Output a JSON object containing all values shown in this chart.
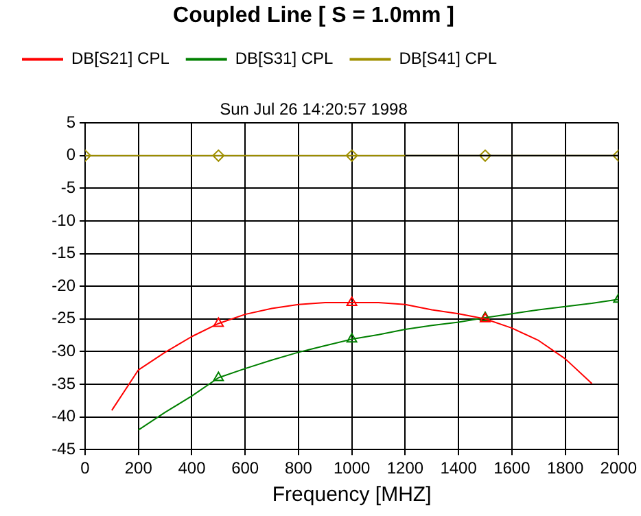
{
  "chart_data": {
    "type": "line",
    "title": "Coupled Line [ S = 1.0mm ]",
    "subtitle": "Sun Jul 26 14:20:57 1998",
    "xlabel": "Frequency [MHZ]",
    "x": [
      0,
      100,
      200,
      300,
      400,
      500,
      600,
      700,
      800,
      900,
      1000,
      1100,
      1200,
      1300,
      1400,
      1500,
      1600,
      1700,
      1800,
      1900,
      2000
    ],
    "series": [
      {
        "color": "#000000",
        "marker": "none",
        "values": [
          null,
          null,
          null,
          null,
          null,
          null,
          null,
          null,
          null,
          null,
          null,
          null,
          0,
          0,
          0,
          0,
          0,
          0,
          0,
          0,
          0
        ]
      },
      {
        "name": "DB[S21] CPL",
        "color": "#ff0000",
        "marker": "none",
        "values": [
          null,
          -39.0,
          -32.8,
          -30.1,
          -27.7,
          -25.7,
          -24.3,
          -23.4,
          -22.8,
          -22.5,
          -22.5,
          -22.5,
          -22.8,
          -23.6,
          -24.2,
          -25.0,
          -26.4,
          -28.3,
          -31.1,
          -34.9,
          null
        ]
      },
      {
        "name": "DB[S31] CPL",
        "color": "#008000",
        "marker": "none",
        "values": [
          null,
          null,
          -42.0,
          -39.3,
          -36.8,
          -34.0,
          -32.6,
          -31.3,
          -30.1,
          -29.1,
          -28.1,
          -27.4,
          -26.6,
          -26.0,
          -25.5,
          -24.8,
          -24.2,
          -23.6,
          -23.1,
          -22.6,
          -22.0
        ]
      },
      {
        "name": "DB[S41] CPL",
        "color": "#a09000",
        "marker": "none",
        "values": [
          0,
          0,
          0,
          0,
          0,
          0,
          0,
          0,
          0,
          0,
          0,
          0,
          0,
          0,
          0,
          0,
          0,
          0,
          0,
          0,
          0
        ]
      },
      {
        "type": "scatter",
        "color": "#ff0000",
        "marker": "triangle",
        "x": [
          500,
          1000,
          1500
        ],
        "values": [
          -25.7,
          -22.5,
          -25.0
        ]
      },
      {
        "type": "scatter",
        "color": "#008000",
        "marker": "triangle",
        "x": [
          500,
          1000,
          1500,
          2000
        ],
        "values": [
          -34.0,
          -28.1,
          -24.8,
          -22.0
        ]
      },
      {
        "type": "scatter",
        "color": "#a09000",
        "marker": "diamond",
        "x": [
          0,
          500,
          1000,
          1500,
          2000
        ],
        "values": [
          0,
          0,
          0,
          0,
          0
        ]
      }
    ],
    "xlim": [
      0,
      2000
    ],
    "xticks": [
      0,
      200,
      400,
      600,
      800,
      1000,
      1200,
      1400,
      1600,
      1800,
      2000
    ],
    "ylim": [
      -45,
      5
    ],
    "yticks": [
      5,
      0,
      -5,
      -10,
      -15,
      -20,
      -25,
      -30,
      -35,
      -40,
      -45
    ],
    "grid": true,
    "legend": "top left",
    "line_style": "solid"
  }
}
